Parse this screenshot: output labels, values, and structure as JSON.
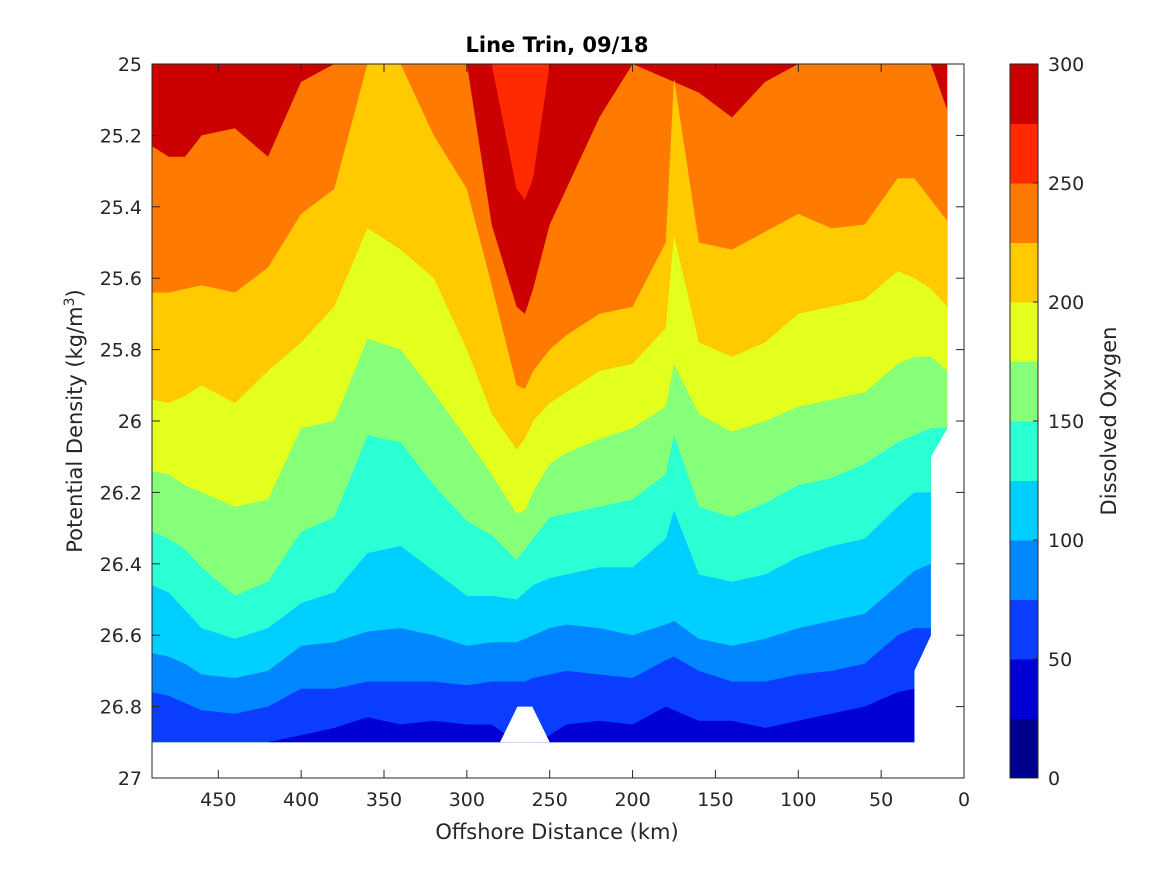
{
  "chart_data": {
    "type": "contourf",
    "title": "Line Trin, 09/18",
    "xlabel": "Offshore Distance (km)",
    "ylabel_main": "Potential Density (kg/m",
    "ylabel_sup": "3",
    "ylabel_close": ")",
    "colorbar_label": "Dissolved Oxygen",
    "x_reversed": true,
    "y_reversed": true,
    "xlim": [
      0,
      490
    ],
    "ylim": [
      25,
      27
    ],
    "xticks": [
      450,
      400,
      350,
      300,
      250,
      200,
      150,
      100,
      50,
      0
    ],
    "xtick_labels": [
      "450",
      "400",
      "350",
      "300",
      "250",
      "200",
      "150",
      "100",
      "50",
      "0"
    ],
    "yticks": [
      25,
      25.2,
      25.4,
      25.6,
      25.8,
      26,
      26.2,
      26.4,
      26.6,
      26.8,
      27
    ],
    "ytick_labels": [
      "25",
      "25.2",
      "25.4",
      "25.6",
      "25.8",
      "26",
      "26.2",
      "26.4",
      "26.6",
      "26.8",
      "27"
    ],
    "clim": [
      0,
      300
    ],
    "colorbar_ticks": [
      0,
      50,
      100,
      150,
      200,
      250,
      300
    ],
    "colorbar_tick_labels": [
      "0",
      "50",
      "100",
      "150",
      "200",
      "250",
      "300"
    ],
    "levels": [
      0,
      25,
      50,
      75,
      100,
      125,
      150,
      175,
      200,
      225,
      250,
      275,
      300
    ],
    "level_colors": [
      "#00008f",
      "#0000d5",
      "#0b3dff",
      "#0087ff",
      "#00cfff",
      "#2bffd4",
      "#86ff79",
      "#e2ff1d",
      "#ffca00",
      "#ff7a00",
      "#ff2a00",
      "#cb0000"
    ],
    "x_nodes": [
      490,
      480,
      470,
      460,
      440,
      420,
      400,
      380,
      360,
      340,
      320,
      300,
      285,
      270,
      265,
      260,
      250,
      240,
      220,
      200,
      180,
      175,
      160,
      140,
      120,
      100,
      80,
      60,
      40,
      30,
      20,
      10
    ],
    "contours": [
      {
        "level": 275,
        "y": [
          null,
          null,
          null,
          null,
          null,
          null,
          null,
          null,
          null,
          null,
          null,
          null,
          25.0,
          25.35,
          25.38,
          25.32,
          25.0,
          null,
          null,
          null,
          null,
          null,
          null,
          null,
          null,
          null,
          null,
          null,
          null,
          null,
          null,
          null
        ]
      },
      {
        "level": 250,
        "y": [
          25.23,
          25.26,
          25.26,
          25.2,
          25.18,
          25.26,
          25.05,
          25.0,
          null,
          null,
          null,
          25.0,
          25.45,
          25.68,
          25.7,
          25.63,
          25.45,
          25.35,
          25.15,
          25.0,
          null,
          null,
          25.08,
          25.15,
          25.05,
          25.0,
          null,
          null,
          null,
          null,
          25.0,
          25.13
        ]
      },
      {
        "level": 225,
        "y": [
          25.64,
          25.64,
          25.63,
          25.62,
          25.64,
          25.57,
          25.42,
          25.35,
          25.0,
          25.0,
          25.2,
          25.35,
          25.62,
          25.9,
          25.91,
          25.86,
          25.8,
          25.76,
          25.7,
          25.68,
          25.5,
          25.04,
          25.5,
          25.52,
          25.47,
          25.42,
          25.46,
          25.45,
          25.32,
          25.32,
          25.38,
          25.44
        ]
      },
      {
        "level": 200,
        "y": [
          25.94,
          25.95,
          25.93,
          25.9,
          25.95,
          25.86,
          25.78,
          25.68,
          25.46,
          25.52,
          25.6,
          25.8,
          25.98,
          26.08,
          26.05,
          26.0,
          25.95,
          25.92,
          25.86,
          25.84,
          25.74,
          25.48,
          25.78,
          25.82,
          25.78,
          25.7,
          25.68,
          25.66,
          25.58,
          25.6,
          25.63,
          25.68
        ]
      },
      {
        "level": 175,
        "y": [
          26.14,
          26.15,
          26.18,
          26.2,
          26.24,
          26.22,
          26.02,
          26.0,
          25.77,
          25.8,
          25.92,
          26.05,
          26.15,
          26.26,
          26.25,
          26.2,
          26.12,
          26.09,
          26.05,
          26.02,
          25.96,
          25.84,
          25.98,
          26.03,
          26.0,
          25.96,
          25.94,
          25.92,
          25.84,
          25.82,
          25.82,
          25.86
        ]
      },
      {
        "level": 150,
        "y": [
          26.31,
          26.33,
          26.36,
          26.41,
          26.49,
          26.45,
          26.31,
          26.27,
          26.04,
          26.06,
          26.18,
          26.28,
          26.32,
          26.39,
          26.36,
          26.33,
          26.27,
          26.26,
          26.24,
          26.22,
          26.15,
          26.04,
          26.24,
          26.27,
          26.23,
          26.18,
          26.16,
          26.12,
          26.06,
          26.04,
          26.02,
          26.02
        ]
      },
      {
        "level": 125,
        "y": [
          26.46,
          26.48,
          26.53,
          26.58,
          26.61,
          26.58,
          26.51,
          26.48,
          26.37,
          26.35,
          26.42,
          26.49,
          26.49,
          26.5,
          26.48,
          26.46,
          26.44,
          26.43,
          26.41,
          26.41,
          26.33,
          26.25,
          26.43,
          26.45,
          26.43,
          26.38,
          26.35,
          26.33,
          26.24,
          26.2,
          26.2,
          null
        ]
      },
      {
        "level": 100,
        "y": [
          26.65,
          26.66,
          26.68,
          26.71,
          26.72,
          26.7,
          26.63,
          26.62,
          26.59,
          26.58,
          26.6,
          26.63,
          26.62,
          26.62,
          26.61,
          26.6,
          26.58,
          26.57,
          26.58,
          26.6,
          26.57,
          26.56,
          26.61,
          26.63,
          26.61,
          26.58,
          26.56,
          26.54,
          26.46,
          26.42,
          26.4,
          null
        ]
      },
      {
        "level": 75,
        "y": [
          26.76,
          26.77,
          26.79,
          26.81,
          26.82,
          26.8,
          26.75,
          26.75,
          26.73,
          26.73,
          26.73,
          26.74,
          26.73,
          26.73,
          26.73,
          26.72,
          26.71,
          26.7,
          26.71,
          26.72,
          26.67,
          26.66,
          26.7,
          26.73,
          26.73,
          26.71,
          26.7,
          26.68,
          26.6,
          26.58,
          26.58,
          null
        ]
      },
      {
        "level": 50,
        "y": [
          26.9,
          26.9,
          26.9,
          26.9,
          26.9,
          26.9,
          26.88,
          26.86,
          26.83,
          26.85,
          26.84,
          26.85,
          26.85,
          26.9,
          26.9,
          26.9,
          26.88,
          26.85,
          26.84,
          26.85,
          26.8,
          26.81,
          26.84,
          26.84,
          26.86,
          26.84,
          26.82,
          26.8,
          26.76,
          26.75,
          26.7,
          null
        ]
      }
    ],
    "data_bottom_y": 26.9,
    "gaps": [
      {
        "x_left": 280,
        "x_right": 250,
        "y_top": 26.8,
        "note": ""
      }
    ]
  }
}
